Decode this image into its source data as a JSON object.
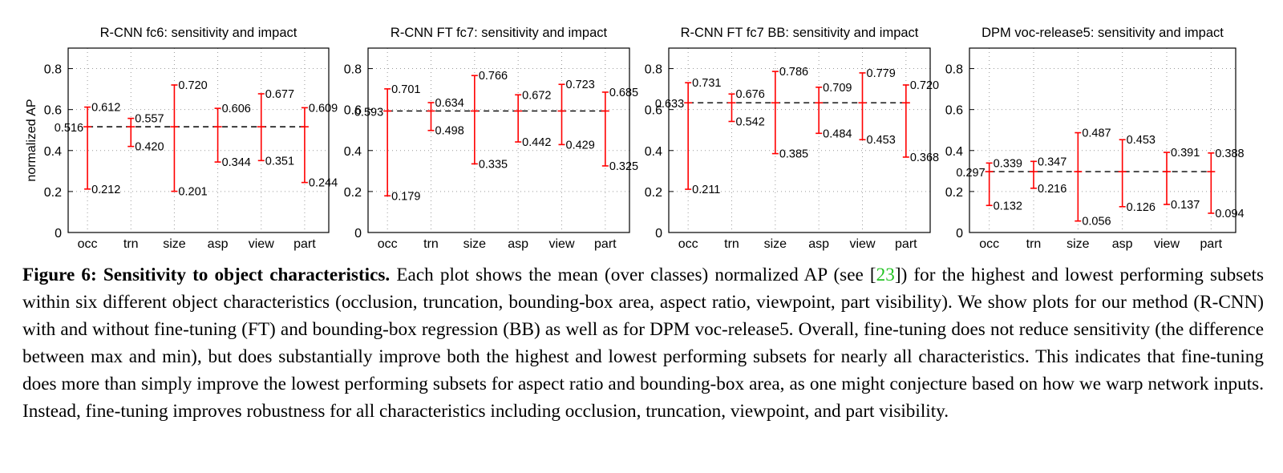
{
  "chart_data": [
    {
      "type": "errorbar",
      "title": "R-CNN fc6: sensitivity and impact",
      "ylabel": "normalized AP",
      "ylim": [
        0,
        0.9
      ],
      "yticks": [
        "0",
        "0.2",
        "0.4",
        "0.6",
        "0.8"
      ],
      "grid": true,
      "mean": 0.516,
      "mean_label": "0.516",
      "categories": [
        "occ",
        "trn",
        "size",
        "asp",
        "view",
        "part"
      ],
      "max": [
        0.612,
        0.557,
        0.72,
        0.606,
        0.677,
        0.609
      ],
      "min": [
        0.212,
        0.42,
        0.201,
        0.344,
        0.351,
        0.244
      ],
      "max_labels": [
        "0.612",
        "0.557",
        "0.720",
        "0.606",
        "0.677",
        "0.609"
      ],
      "min_labels": [
        "0.212",
        "0.420",
        "0.201",
        "0.344",
        "0.351",
        "0.244"
      ]
    },
    {
      "type": "errorbar",
      "title": "R-CNN FT fc7: sensitivity and impact",
      "ylabel": "",
      "ylim": [
        0,
        0.9
      ],
      "yticks": [
        "0",
        "0.2",
        "0.4",
        "0.6",
        "0.8"
      ],
      "grid": true,
      "mean": 0.593,
      "mean_label": "0.593",
      "categories": [
        "occ",
        "trn",
        "size",
        "asp",
        "view",
        "part"
      ],
      "max": [
        0.701,
        0.634,
        0.766,
        0.672,
        0.723,
        0.685
      ],
      "min": [
        0.179,
        0.498,
        0.335,
        0.442,
        0.429,
        0.325
      ],
      "max_labels": [
        "0.701",
        "0.634",
        "0.766",
        "0.672",
        "0.723",
        "0.685"
      ],
      "min_labels": [
        "0.179",
        "0.498",
        "0.335",
        "0.442",
        "0.429",
        "0.325"
      ]
    },
    {
      "type": "errorbar",
      "title": "R-CNN FT fc7 BB: sensitivity and impact",
      "ylabel": "",
      "ylim": [
        0,
        0.9
      ],
      "yticks": [
        "0",
        "0.2",
        "0.4",
        "0.6",
        "0.8"
      ],
      "grid": true,
      "mean": 0.633,
      "mean_label": "0.633",
      "categories": [
        "occ",
        "trn",
        "size",
        "asp",
        "view",
        "part"
      ],
      "max": [
        0.731,
        0.676,
        0.786,
        0.709,
        0.779,
        0.72
      ],
      "min": [
        0.211,
        0.542,
        0.385,
        0.484,
        0.453,
        0.368
      ],
      "max_labels": [
        "0.731",
        "0.676",
        "0.786",
        "0.709",
        "0.779",
        "0.720"
      ],
      "min_labels": [
        "0.211",
        "0.542",
        "0.385",
        "0.484",
        "0.453",
        "0.368"
      ]
    },
    {
      "type": "errorbar",
      "title": "DPM voc-release5: sensitivity and impact",
      "ylabel": "",
      "ylim": [
        0,
        0.9
      ],
      "yticks": [
        "0",
        "0.2",
        "0.4",
        "0.6",
        "0.8"
      ],
      "grid": true,
      "mean": 0.297,
      "mean_label": "0.297",
      "categories": [
        "occ",
        "trn",
        "size",
        "asp",
        "view",
        "part"
      ],
      "max": [
        0.339,
        0.347,
        0.487,
        0.453,
        0.391,
        0.388
      ],
      "min": [
        0.132,
        0.216,
        0.056,
        0.126,
        0.137,
        0.094
      ],
      "max_labels": [
        "0.339",
        "0.347",
        "0.487",
        "0.453",
        "0.391",
        "0.388"
      ],
      "min_labels": [
        "0.132",
        "0.216",
        "0.056",
        "0.126",
        "0.137",
        "0.094"
      ]
    }
  ],
  "colors": {
    "bar": "#ff0000",
    "mean_line": "#000000",
    "grid": "#9a9a9a",
    "reference": "#22c322"
  },
  "caption": {
    "label": "Figure 6: Sensitivity to object characteristics.",
    "text_before_ref": " Each plot shows the mean (over classes) normalized AP (see [",
    "ref": "23",
    "text_after_ref": "]) for the highest and lowest performing subsets within six different object characteristics (occlusion, truncation, bounding-box area, aspect ratio, viewpoint, part visibility). We show plots for our method (R-CNN) with and without fine-tuning (FT) and bounding-box regression (BB) as well as for DPM voc-release5. Overall, fine-tuning does not reduce sensitivity (the difference between max and min), but does substantially improve both the highest and lowest performing subsets for nearly all characteristics. This indicates that fine-tuning does more than simply improve the lowest performing subsets for aspect ratio and bounding-box area, as one might conjecture based on how we warp network inputs. Instead, fine-tuning improves robustness for all characteristics including occlusion, truncation, viewpoint, and part visibility."
  }
}
